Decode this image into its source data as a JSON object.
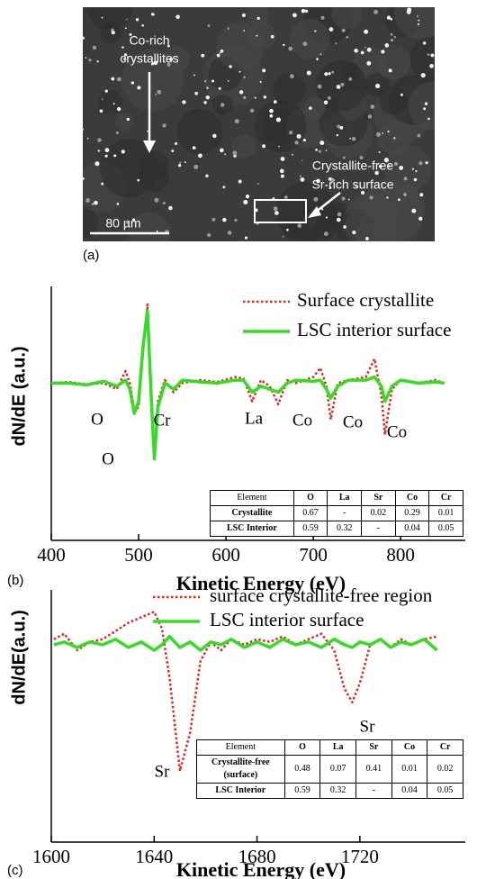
{
  "image_panel": {
    "labels": [
      "Co-rich",
      "crystallites"
    ],
    "region_labels": [
      "Crystallite-free",
      "Sr-rich surface"
    ],
    "scale_bar": "80 µm",
    "panel_label": "(a)"
  },
  "chart_data": [
    {
      "type": "line",
      "panel_label": "(b)",
      "ylabel": "dN/dE (a.u.)",
      "xlabel": "Kinetic Energy (eV)",
      "xlim": [
        400,
        874
      ],
      "xticks": [
        400,
        500,
        600,
        700,
        800
      ],
      "ylim": [
        -2.6,
        1.6
      ],
      "x": [
        400,
        420,
        440,
        460,
        475,
        485,
        490,
        495,
        500,
        505,
        510,
        515,
        518,
        522,
        530,
        540,
        550,
        570,
        590,
        610,
        620,
        630,
        640,
        650,
        660,
        670,
        680,
        700,
        708,
        715,
        720,
        728,
        740,
        760,
        770,
        778,
        782,
        790,
        800,
        820,
        840,
        850
      ],
      "series": [
        {
          "name": "Surface crystallite",
          "color": "#e8231e",
          "style": "dotted",
          "values": [
            0,
            0.02,
            -0.02,
            0,
            -0.1,
            0.2,
            0,
            -0.45,
            -0.4,
            0.5,
            1.3,
            -0.5,
            -1.2,
            -0.3,
            0.05,
            -0.15,
            0,
            0.05,
            0.02,
            0.1,
            0.08,
            -0.3,
            0.05,
            -0.05,
            -0.35,
            0.05,
            0,
            0.1,
            0.25,
            -0.05,
            -0.6,
            0,
            0.05,
            0.1,
            0.4,
            -0.2,
            -0.85,
            -0.1,
            0.05,
            0,
            0.05,
            0
          ]
        },
        {
          "name": "LSC interior surface",
          "color": "#33dd22",
          "style": "solid",
          "values": [
            0,
            0,
            -0.03,
            0.03,
            -0.05,
            0.05,
            -0.1,
            -0.5,
            -0.3,
            0.6,
            1.2,
            -0.4,
            -1.25,
            -0.4,
            0,
            -0.1,
            0.05,
            0.02,
            0,
            0.05,
            0.05,
            -0.15,
            -0.05,
            -0.1,
            -0.15,
            0,
            0.05,
            0.03,
            0.05,
            -0.1,
            -0.25,
            -0.05,
            0.05,
            0.05,
            0.1,
            -0.05,
            -0.3,
            -0.05,
            0.05,
            0,
            0.02,
            0
          ]
        }
      ],
      "annotations": [
        "O",
        "Cr",
        "O",
        "La",
        "Co",
        "Co",
        "Co"
      ],
      "table": {
        "header": [
          "Element",
          "O",
          "La",
          "Sr",
          "Co",
          "Cr"
        ],
        "rows": [
          [
            "Crystallite",
            "0.67",
            "-",
            "0.02",
            "0.29",
            "0.01"
          ],
          [
            "LSC Interior",
            "0.59",
            "0.32",
            "-",
            "0.04",
            "0.05"
          ]
        ]
      }
    },
    {
      "type": "line",
      "panel_label": "(c)",
      "ylabel": "dN/dE(a.u.)",
      "xlabel": "Kinetic Energy (eV)",
      "xlim": [
        1600,
        1761
      ],
      "xticks": [
        1600,
        1640,
        1680,
        1720
      ],
      "ylim": [
        -3.6,
        1
      ],
      "x": [
        1601,
        1605,
        1610,
        1615,
        1620,
        1625,
        1630,
        1635,
        1640,
        1643,
        1646,
        1650,
        1654,
        1658,
        1662,
        1666,
        1670,
        1675,
        1680,
        1685,
        1690,
        1695,
        1700,
        1705,
        1710,
        1714,
        1717,
        1720,
        1724,
        1728,
        1732,
        1736,
        1740,
        1745,
        1750
      ],
      "series": [
        {
          "name": "surface crystallite-free region",
          "color": "#e8231e",
          "style": "dotted",
          "values": [
            0.1,
            0.2,
            -0.1,
            0.05,
            0.1,
            0.25,
            0.4,
            0.5,
            0.6,
            0.3,
            -0.6,
            -2.3,
            -1.6,
            -0.3,
            0.05,
            -0.1,
            0.1,
            0,
            0.1,
            0.05,
            0.15,
            0,
            0.1,
            0.2,
            -0.1,
            -0.8,
            -1.05,
            -0.7,
            0,
            0.1,
            -0.05,
            0.1,
            0,
            0.1,
            0.15
          ]
        },
        {
          "name": "LSC interior surface",
          "color": "#33dd22",
          "style": "solid",
          "values": [
            0,
            0.05,
            -0.05,
            0.05,
            0,
            0.1,
            -0.05,
            0.05,
            -0.1,
            0,
            0.15,
            -0.05,
            0.05,
            -0.1,
            0.05,
            0,
            0.1,
            -0.05,
            0.05,
            -0.05,
            0.1,
            0,
            0.05,
            -0.05,
            0.1,
            0,
            -0.05,
            0.05,
            0,
            0.1,
            -0.05,
            0.05,
            0,
            0.1,
            -0.1
          ]
        }
      ],
      "annotations": [
        "Sr",
        "Sr"
      ],
      "table": {
        "header": [
          "Element",
          "O",
          "La",
          "Sr",
          "Co",
          "Cr"
        ],
        "rows": [
          [
            "Crystallite-free (surface)",
            "0.48",
            "0.07",
            "0.41",
            "0.01",
            "0.02"
          ],
          [
            "LSC Interior",
            "0.59",
            "0.32",
            "-",
            "0.04",
            "0.05"
          ]
        ]
      }
    }
  ]
}
